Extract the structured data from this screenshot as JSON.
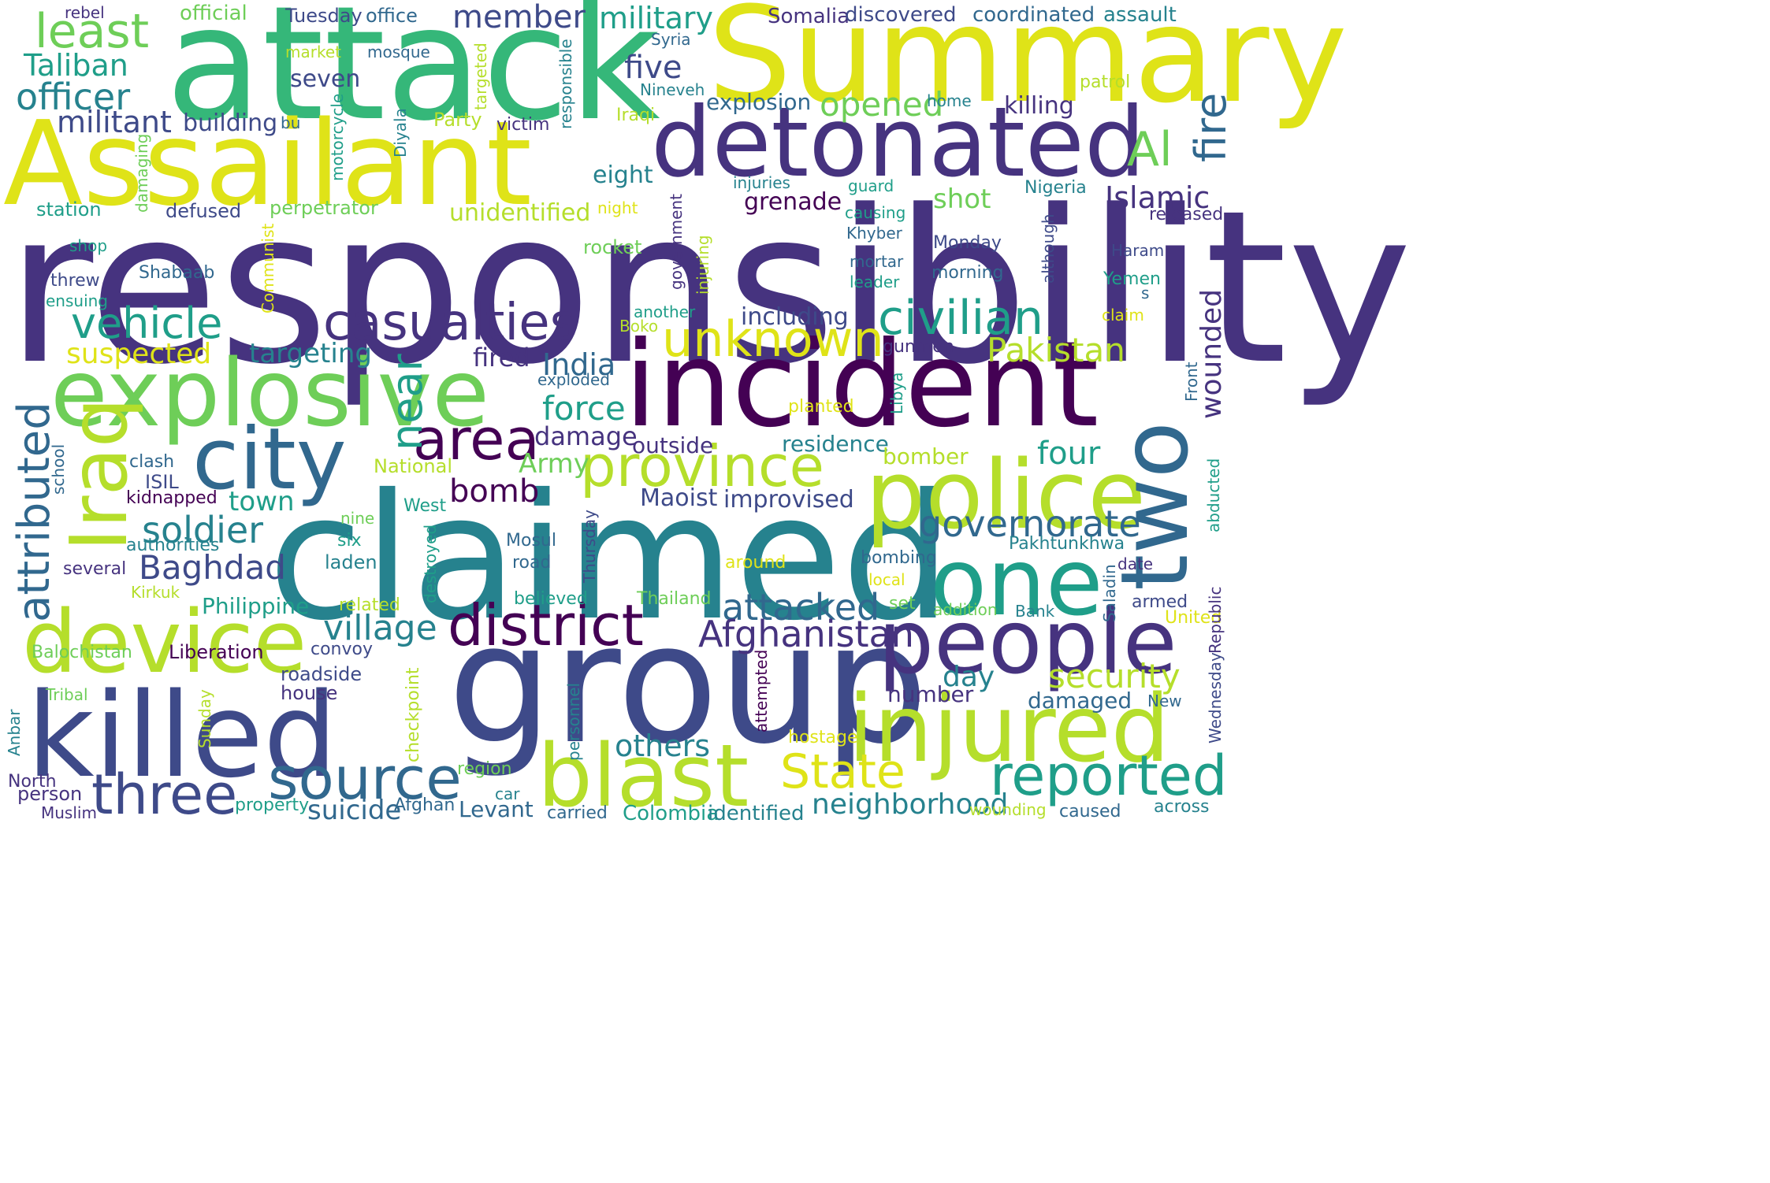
{
  "palette": {
    "background": "#ffffff",
    "purple_dark": "#440154",
    "purple": "#46337f",
    "blue": "#3e4a89",
    "blue_mid": "#31688e",
    "teal": "#26828e",
    "teal_green": "#1f9e89",
    "green": "#35b779",
    "green_light": "#6ece58",
    "yellow_green": "#b5de2b",
    "yellow": "#dfe318"
  },
  "words": [
    {
      "text": "responsibility"
    },
    {
      "text": "claimed"
    },
    {
      "text": "attack"
    },
    {
      "text": "Summary"
    },
    {
      "text": "Assailant"
    },
    {
      "text": "group"
    },
    {
      "text": "incident"
    },
    {
      "text": "detonated"
    },
    {
      "text": "explosive"
    },
    {
      "text": "killed"
    },
    {
      "text": "device"
    },
    {
      "text": "police"
    },
    {
      "text": "injured"
    },
    {
      "text": "one"
    },
    {
      "text": "two"
    },
    {
      "text": "people"
    },
    {
      "text": "blast"
    },
    {
      "text": "city"
    },
    {
      "text": "Iraq"
    },
    {
      "text": "district"
    },
    {
      "text": "province"
    },
    {
      "text": "three"
    },
    {
      "text": "source"
    },
    {
      "text": "reported"
    },
    {
      "text": "area"
    },
    {
      "text": "casualties"
    },
    {
      "text": "unknown"
    },
    {
      "text": "civilian"
    },
    {
      "text": "vehicle"
    },
    {
      "text": "attributed"
    },
    {
      "text": "State"
    },
    {
      "text": "least"
    },
    {
      "text": "Al"
    },
    {
      "text": "fire"
    },
    {
      "text": "near"
    },
    {
      "text": "officer"
    },
    {
      "text": "governorate"
    },
    {
      "text": "attacked"
    },
    {
      "text": "Afghanistan"
    },
    {
      "text": "soldier"
    },
    {
      "text": "Baghdad"
    },
    {
      "text": "village"
    },
    {
      "text": "security"
    },
    {
      "text": "wounded"
    },
    {
      "text": "Pakistan"
    },
    {
      "text": "Islamic"
    },
    {
      "text": "opened"
    },
    {
      "text": "military"
    },
    {
      "text": "member"
    },
    {
      "text": "militant"
    },
    {
      "text": "Taliban"
    },
    {
      "text": "five"
    },
    {
      "text": "force"
    },
    {
      "text": "India"
    },
    {
      "text": "bomb"
    },
    {
      "text": "four"
    },
    {
      "text": "others"
    },
    {
      "text": "neighborhood"
    },
    {
      "text": "suicide"
    },
    {
      "text": "day"
    },
    {
      "text": "suspected"
    },
    {
      "text": "targeting"
    },
    {
      "text": "town"
    },
    {
      "text": "Army"
    },
    {
      "text": "damage"
    },
    {
      "text": "fired"
    },
    {
      "text": "shot"
    },
    {
      "text": "grenade"
    },
    {
      "text": "unidentified"
    },
    {
      "text": "Maoist"
    },
    {
      "text": "improvised"
    },
    {
      "text": "building"
    },
    {
      "text": "explosion"
    },
    {
      "text": "killing"
    },
    {
      "text": "seven"
    },
    {
      "text": "eight"
    },
    {
      "text": "including"
    },
    {
      "text": "outside"
    },
    {
      "text": "residence"
    },
    {
      "text": "bomber"
    },
    {
      "text": "damaged"
    },
    {
      "text": "number"
    },
    {
      "text": "Philippine"
    },
    {
      "text": "Levant"
    },
    {
      "text": "Colombia"
    },
    {
      "text": "identified"
    },
    {
      "text": "official"
    },
    {
      "text": "Tuesday"
    },
    {
      "text": "office"
    },
    {
      "text": "Somalia"
    },
    {
      "text": "discovered"
    },
    {
      "text": "coordinated"
    },
    {
      "text": "assault"
    },
    {
      "text": "rebel"
    },
    {
      "text": "market"
    },
    {
      "text": "mosque"
    },
    {
      "text": "Syria"
    },
    {
      "text": "patrol"
    },
    {
      "text": "Nineveh"
    },
    {
      "text": "home"
    },
    {
      "text": "Party"
    },
    {
      "text": "victim"
    },
    {
      "text": "bu"
    },
    {
      "text": "Iraqi"
    },
    {
      "text": "station"
    },
    {
      "text": "defused"
    },
    {
      "text": "perpetrator"
    },
    {
      "text": "night"
    },
    {
      "text": "injuries"
    },
    {
      "text": "guard"
    },
    {
      "text": "Nigeria"
    },
    {
      "text": "released"
    },
    {
      "text": "causing"
    },
    {
      "text": "shop"
    },
    {
      "text": "rocket"
    },
    {
      "text": "Khyber"
    },
    {
      "text": "Monday"
    },
    {
      "text": "Haram"
    },
    {
      "text": "mortar"
    },
    {
      "text": "leader"
    },
    {
      "text": "morning"
    },
    {
      "text": "threw"
    },
    {
      "text": "Shabaab"
    },
    {
      "text": "Yemen"
    },
    {
      "text": "ensuing"
    },
    {
      "text": "s"
    },
    {
      "text": "another"
    },
    {
      "text": "claim"
    },
    {
      "text": "Boko"
    },
    {
      "text": "gunmen"
    },
    {
      "text": "exploded"
    },
    {
      "text": "planted"
    },
    {
      "text": "Front"
    },
    {
      "text": "abducted"
    },
    {
      "text": "clash"
    },
    {
      "text": "National"
    },
    {
      "text": "ISIL"
    },
    {
      "text": "kidnapped"
    },
    {
      "text": "West"
    },
    {
      "text": "nine"
    },
    {
      "text": "six"
    },
    {
      "text": "Mosul"
    },
    {
      "text": "authorities"
    },
    {
      "text": "laden"
    },
    {
      "text": "road"
    },
    {
      "text": "Pakhtunkhwa"
    },
    {
      "text": "bombing"
    },
    {
      "text": "date"
    },
    {
      "text": "several"
    },
    {
      "text": "around"
    },
    {
      "text": "local"
    },
    {
      "text": "Kirkuk"
    },
    {
      "text": "believed"
    },
    {
      "text": "Thailand"
    },
    {
      "text": "related"
    },
    {
      "text": "set"
    },
    {
      "text": "addition"
    },
    {
      "text": "Bank"
    },
    {
      "text": "armed"
    },
    {
      "text": "United"
    },
    {
      "text": "convoy"
    },
    {
      "text": "Balochistan"
    },
    {
      "text": "Liberation"
    },
    {
      "text": "roadside"
    },
    {
      "text": "house"
    },
    {
      "text": "Tribal"
    },
    {
      "text": "New"
    },
    {
      "text": "hostage"
    },
    {
      "text": "region"
    },
    {
      "text": "car"
    },
    {
      "text": "North"
    },
    {
      "text": "person"
    },
    {
      "text": "Muslim"
    },
    {
      "text": "property"
    },
    {
      "text": "Afghan"
    },
    {
      "text": "carried"
    },
    {
      "text": "wounding"
    },
    {
      "text": "caused"
    },
    {
      "text": "across"
    },
    {
      "text": "targeted"
    },
    {
      "text": "responsible"
    },
    {
      "text": "motorcycle"
    },
    {
      "text": "Diyala"
    },
    {
      "text": "damaging"
    },
    {
      "text": "government"
    },
    {
      "text": "injuring"
    },
    {
      "text": "although"
    },
    {
      "text": "Communist"
    },
    {
      "text": "school"
    },
    {
      "text": "destroyed"
    },
    {
      "text": "Thursday"
    },
    {
      "text": "checkpoint"
    },
    {
      "text": "personnel"
    },
    {
      "text": "attempted"
    },
    {
      "text": "Libya"
    },
    {
      "text": "Saladin"
    },
    {
      "text": "Republic"
    },
    {
      "text": "Wednesday"
    },
    {
      "text": "Anbar"
    },
    {
      "text": "Sunday"
    }
  ]
}
